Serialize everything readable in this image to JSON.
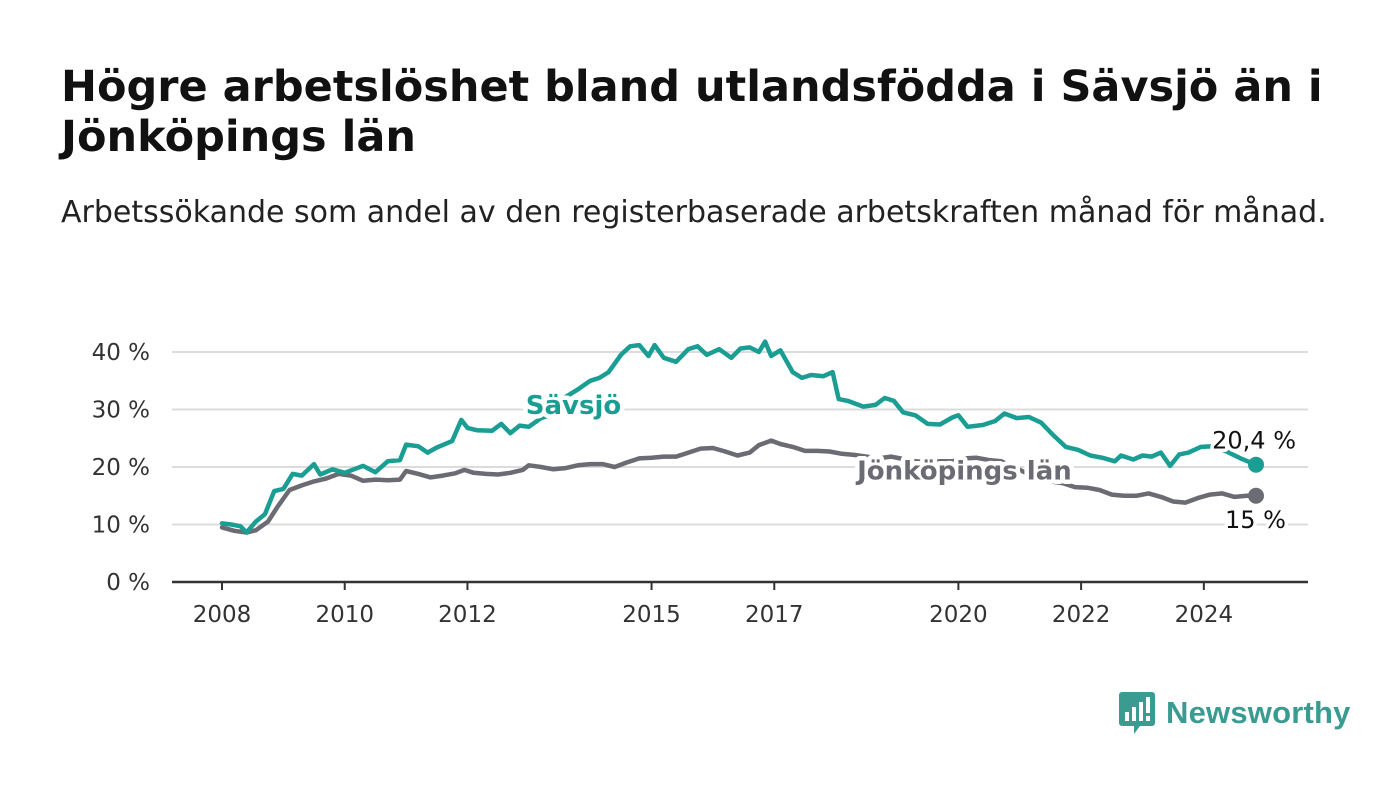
{
  "title": "Högre arbetslöshet bland utlandsfödda i Sävsjö än i Jönköpings län",
  "subtitle": "Arbetssökande som andel av den registerbaserade arbetskraften månad för månad.",
  "brand": {
    "name": "Newsworthy",
    "color": "#3a9c91",
    "icon": "newsworthy-bars-icon"
  },
  "chart_data": {
    "type": "line",
    "title": "Högre arbetslöshet bland utlandsfödda i Sävsjö än i Jönköpings län",
    "subtitle": "Arbetssökande som andel av den registerbaserade arbetskraften månad för månad.",
    "xlabel": "",
    "ylabel": "",
    "x_unit": "year",
    "xlim": [
      2008,
      2025.4
    ],
    "ylim": [
      0,
      40
    ],
    "x_ticks": [
      {
        "value": 2008,
        "label": "2008"
      },
      {
        "value": 2010,
        "label": "2010"
      },
      {
        "value": 2012,
        "label": "2012"
      },
      {
        "value": 2015,
        "label": "2015"
      },
      {
        "value": 2017,
        "label": "2017"
      },
      {
        "value": 2020,
        "label": "2020"
      },
      {
        "value": 2022,
        "label": "2022"
      },
      {
        "value": 2024,
        "label": "2024"
      }
    ],
    "y_ticks": [
      {
        "value": 0,
        "label": "0 %"
      },
      {
        "value": 10,
        "label": "10 %"
      },
      {
        "value": 20,
        "label": "20 %"
      },
      {
        "value": 30,
        "label": "30 %"
      },
      {
        "value": 40,
        "label": "40 %"
      }
    ],
    "grid": "horizontal",
    "legend": "direct labels",
    "series": [
      {
        "name": "Sävsjö",
        "color": "#1a9e93",
        "end_label": "20,4 %",
        "points": [
          [
            2008.0,
            10.2
          ],
          [
            2008.15,
            10.0
          ],
          [
            2008.3,
            9.7
          ],
          [
            2008.4,
            8.6
          ],
          [
            2008.55,
            10.5
          ],
          [
            2008.7,
            11.8
          ],
          [
            2008.85,
            15.8
          ],
          [
            2009.0,
            16.2
          ],
          [
            2009.15,
            18.8
          ],
          [
            2009.3,
            18.5
          ],
          [
            2009.5,
            20.5
          ],
          [
            2009.6,
            18.7
          ],
          [
            2009.8,
            19.6
          ],
          [
            2010.0,
            19.0
          ],
          [
            2010.15,
            19.6
          ],
          [
            2010.3,
            20.2
          ],
          [
            2010.5,
            19.1
          ],
          [
            2010.7,
            21.0
          ],
          [
            2010.9,
            21.2
          ],
          [
            2011.0,
            23.9
          ],
          [
            2011.2,
            23.6
          ],
          [
            2011.35,
            22.5
          ],
          [
            2011.5,
            23.4
          ],
          [
            2011.75,
            24.5
          ],
          [
            2011.9,
            28.2
          ],
          [
            2012.0,
            26.8
          ],
          [
            2012.15,
            26.4
          ],
          [
            2012.4,
            26.3
          ],
          [
            2012.55,
            27.5
          ],
          [
            2012.7,
            25.9
          ],
          [
            2012.85,
            27.2
          ],
          [
            2013.0,
            27.0
          ],
          [
            2013.2,
            28.5
          ],
          [
            2013.4,
            29.2
          ],
          [
            2013.6,
            32.2
          ],
          [
            2013.8,
            33.5
          ],
          [
            2014.0,
            35.0
          ],
          [
            2014.15,
            35.5
          ],
          [
            2014.3,
            36.5
          ],
          [
            2014.5,
            39.5
          ],
          [
            2014.65,
            41.0
          ],
          [
            2014.8,
            41.2
          ],
          [
            2014.95,
            39.3
          ],
          [
            2015.05,
            41.2
          ],
          [
            2015.2,
            39.0
          ],
          [
            2015.4,
            38.3
          ],
          [
            2015.6,
            40.5
          ],
          [
            2015.75,
            41.0
          ],
          [
            2015.9,
            39.5
          ],
          [
            2016.1,
            40.5
          ],
          [
            2016.3,
            39.0
          ],
          [
            2016.45,
            40.6
          ],
          [
            2016.6,
            40.8
          ],
          [
            2016.75,
            40.0
          ],
          [
            2016.85,
            41.8
          ],
          [
            2016.95,
            39.3
          ],
          [
            2017.1,
            40.3
          ],
          [
            2017.3,
            36.5
          ],
          [
            2017.45,
            35.5
          ],
          [
            2017.6,
            36.0
          ],
          [
            2017.8,
            35.8
          ],
          [
            2017.95,
            36.5
          ],
          [
            2018.05,
            31.8
          ],
          [
            2018.2,
            31.5
          ],
          [
            2018.45,
            30.5
          ],
          [
            2018.65,
            30.8
          ],
          [
            2018.8,
            32.0
          ],
          [
            2018.95,
            31.5
          ],
          [
            2019.1,
            29.5
          ],
          [
            2019.3,
            29.0
          ],
          [
            2019.5,
            27.5
          ],
          [
            2019.7,
            27.4
          ],
          [
            2019.9,
            28.6
          ],
          [
            2020.0,
            29.0
          ],
          [
            2020.15,
            27.0
          ],
          [
            2020.4,
            27.3
          ],
          [
            2020.6,
            28.0
          ],
          [
            2020.75,
            29.3
          ],
          [
            2020.95,
            28.5
          ],
          [
            2021.15,
            28.7
          ],
          [
            2021.35,
            27.7
          ],
          [
            2021.55,
            25.5
          ],
          [
            2021.75,
            23.5
          ],
          [
            2021.95,
            23.0
          ],
          [
            2022.15,
            22.0
          ],
          [
            2022.35,
            21.6
          ],
          [
            2022.55,
            21.0
          ],
          [
            2022.65,
            22.0
          ],
          [
            2022.85,
            21.3
          ],
          [
            2023.0,
            22.0
          ],
          [
            2023.15,
            21.8
          ],
          [
            2023.3,
            22.5
          ],
          [
            2023.45,
            20.2
          ],
          [
            2023.6,
            22.2
          ],
          [
            2023.75,
            22.5
          ],
          [
            2023.95,
            23.5
          ],
          [
            2024.15,
            23.6
          ],
          [
            2024.35,
            22.8
          ],
          [
            2024.6,
            21.5
          ],
          [
            2024.85,
            20.4
          ]
        ]
      },
      {
        "name": "Jönköpings län",
        "color": "#6b6b73",
        "end_label": "15 %",
        "points": [
          [
            2008.0,
            9.5
          ],
          [
            2008.2,
            8.9
          ],
          [
            2008.4,
            8.6
          ],
          [
            2008.55,
            9.0
          ],
          [
            2008.75,
            10.5
          ],
          [
            2008.9,
            13.0
          ],
          [
            2009.1,
            16.0
          ],
          [
            2009.3,
            16.8
          ],
          [
            2009.5,
            17.5
          ],
          [
            2009.7,
            18.0
          ],
          [
            2009.9,
            18.8
          ],
          [
            2010.1,
            18.5
          ],
          [
            2010.3,
            17.6
          ],
          [
            2010.5,
            17.8
          ],
          [
            2010.7,
            17.7
          ],
          [
            2010.9,
            17.8
          ],
          [
            2011.0,
            19.3
          ],
          [
            2011.2,
            18.8
          ],
          [
            2011.4,
            18.2
          ],
          [
            2011.6,
            18.5
          ],
          [
            2011.8,
            18.9
          ],
          [
            2011.95,
            19.5
          ],
          [
            2012.1,
            19.0
          ],
          [
            2012.3,
            18.8
          ],
          [
            2012.5,
            18.7
          ],
          [
            2012.7,
            19.0
          ],
          [
            2012.9,
            19.5
          ],
          [
            2013.0,
            20.3
          ],
          [
            2013.2,
            20.0
          ],
          [
            2013.4,
            19.6
          ],
          [
            2013.6,
            19.8
          ],
          [
            2013.8,
            20.3
          ],
          [
            2014.0,
            20.5
          ],
          [
            2014.2,
            20.5
          ],
          [
            2014.4,
            20.0
          ],
          [
            2014.6,
            20.8
          ],
          [
            2014.8,
            21.5
          ],
          [
            2015.0,
            21.6
          ],
          [
            2015.2,
            21.8
          ],
          [
            2015.4,
            21.8
          ],
          [
            2015.6,
            22.5
          ],
          [
            2015.8,
            23.2
          ],
          [
            2016.0,
            23.3
          ],
          [
            2016.2,
            22.7
          ],
          [
            2016.4,
            22.0
          ],
          [
            2016.6,
            22.5
          ],
          [
            2016.75,
            23.8
          ],
          [
            2016.95,
            24.6
          ],
          [
            2017.1,
            24.0
          ],
          [
            2017.3,
            23.5
          ],
          [
            2017.5,
            22.8
          ],
          [
            2017.7,
            22.8
          ],
          [
            2017.9,
            22.7
          ],
          [
            2018.1,
            22.3
          ],
          [
            2018.3,
            22.1
          ],
          [
            2018.5,
            21.8
          ],
          [
            2018.7,
            21.5
          ],
          [
            2018.9,
            21.8
          ],
          [
            2019.1,
            21.4
          ],
          [
            2019.3,
            21.0
          ],
          [
            2019.5,
            20.8
          ],
          [
            2019.7,
            21.0
          ],
          [
            2019.9,
            21.0
          ],
          [
            2020.1,
            21.5
          ],
          [
            2020.3,
            21.6
          ],
          [
            2020.5,
            21.2
          ],
          [
            2020.7,
            21.0
          ],
          [
            2020.9,
            20.0
          ],
          [
            2021.1,
            19.0
          ],
          [
            2021.3,
            18.0
          ],
          [
            2021.5,
            17.5
          ],
          [
            2021.7,
            17.2
          ],
          [
            2021.9,
            16.5
          ],
          [
            2022.1,
            16.4
          ],
          [
            2022.3,
            16.0
          ],
          [
            2022.5,
            15.2
          ],
          [
            2022.7,
            15.0
          ],
          [
            2022.9,
            15.0
          ],
          [
            2023.1,
            15.4
          ],
          [
            2023.3,
            14.8
          ],
          [
            2023.5,
            14.0
          ],
          [
            2023.7,
            13.8
          ],
          [
            2023.9,
            14.6
          ],
          [
            2024.1,
            15.2
          ],
          [
            2024.3,
            15.4
          ],
          [
            2024.5,
            14.8
          ],
          [
            2024.7,
            15.0
          ],
          [
            2024.85,
            15.0
          ]
        ]
      }
    ]
  }
}
